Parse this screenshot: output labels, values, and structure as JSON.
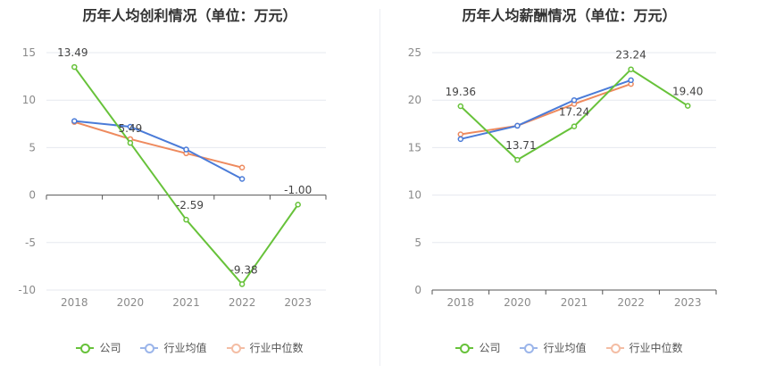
{
  "colors": {
    "company": "#67c23a",
    "industry_avg": "#4a7bd8",
    "industry_median": "#ee8a5e"
  },
  "legend": {
    "company": "公司",
    "industry_avg": "行业均值",
    "industry_median": "行业中位数"
  },
  "chart_data": [
    {
      "type": "line",
      "title": "历年人均创利情况（单位：万元）",
      "categories": [
        "2018",
        "2020",
        "2021",
        "2022",
        "2023"
      ],
      "ylim": [
        -10,
        15
      ],
      "yticks": [
        15,
        10,
        5,
        0,
        -5,
        -10
      ],
      "grid": true,
      "legend_position": "bottom",
      "series": [
        {
          "name": "公司",
          "color": "#67c23a",
          "values": [
            13.49,
            5.49,
            -2.59,
            -9.38,
            -1.0
          ],
          "labels": [
            "13.49",
            "5.49",
            "-2.59",
            "-9.38",
            "-1.00"
          ]
        },
        {
          "name": "行业均值",
          "color": "#4a7bd8",
          "values": [
            7.8,
            7.2,
            4.8,
            1.7,
            null
          ]
        },
        {
          "name": "行业中位数",
          "color": "#ee8a5e",
          "values": [
            7.7,
            5.9,
            4.4,
            2.9,
            null
          ]
        }
      ]
    },
    {
      "type": "line",
      "title": "历年人均薪酬情况（单位：万元）",
      "categories": [
        "2018",
        "2020",
        "2021",
        "2022",
        "2023"
      ],
      "ylim": [
        0,
        25
      ],
      "yticks": [
        25,
        20,
        15,
        10,
        5,
        0
      ],
      "grid": true,
      "legend_position": "bottom",
      "series": [
        {
          "name": "公司",
          "color": "#67c23a",
          "values": [
            19.36,
            13.71,
            17.24,
            23.24,
            19.4
          ],
          "labels": [
            "19.36",
            "13.71",
            "17.24",
            "23.24",
            "19.40"
          ]
        },
        {
          "name": "行业均值",
          "color": "#4a7bd8",
          "values": [
            15.9,
            17.3,
            20.0,
            22.1,
            null
          ]
        },
        {
          "name": "行业中位数",
          "color": "#ee8a5e",
          "values": [
            16.4,
            17.3,
            19.6,
            21.7,
            null
          ]
        }
      ]
    }
  ]
}
